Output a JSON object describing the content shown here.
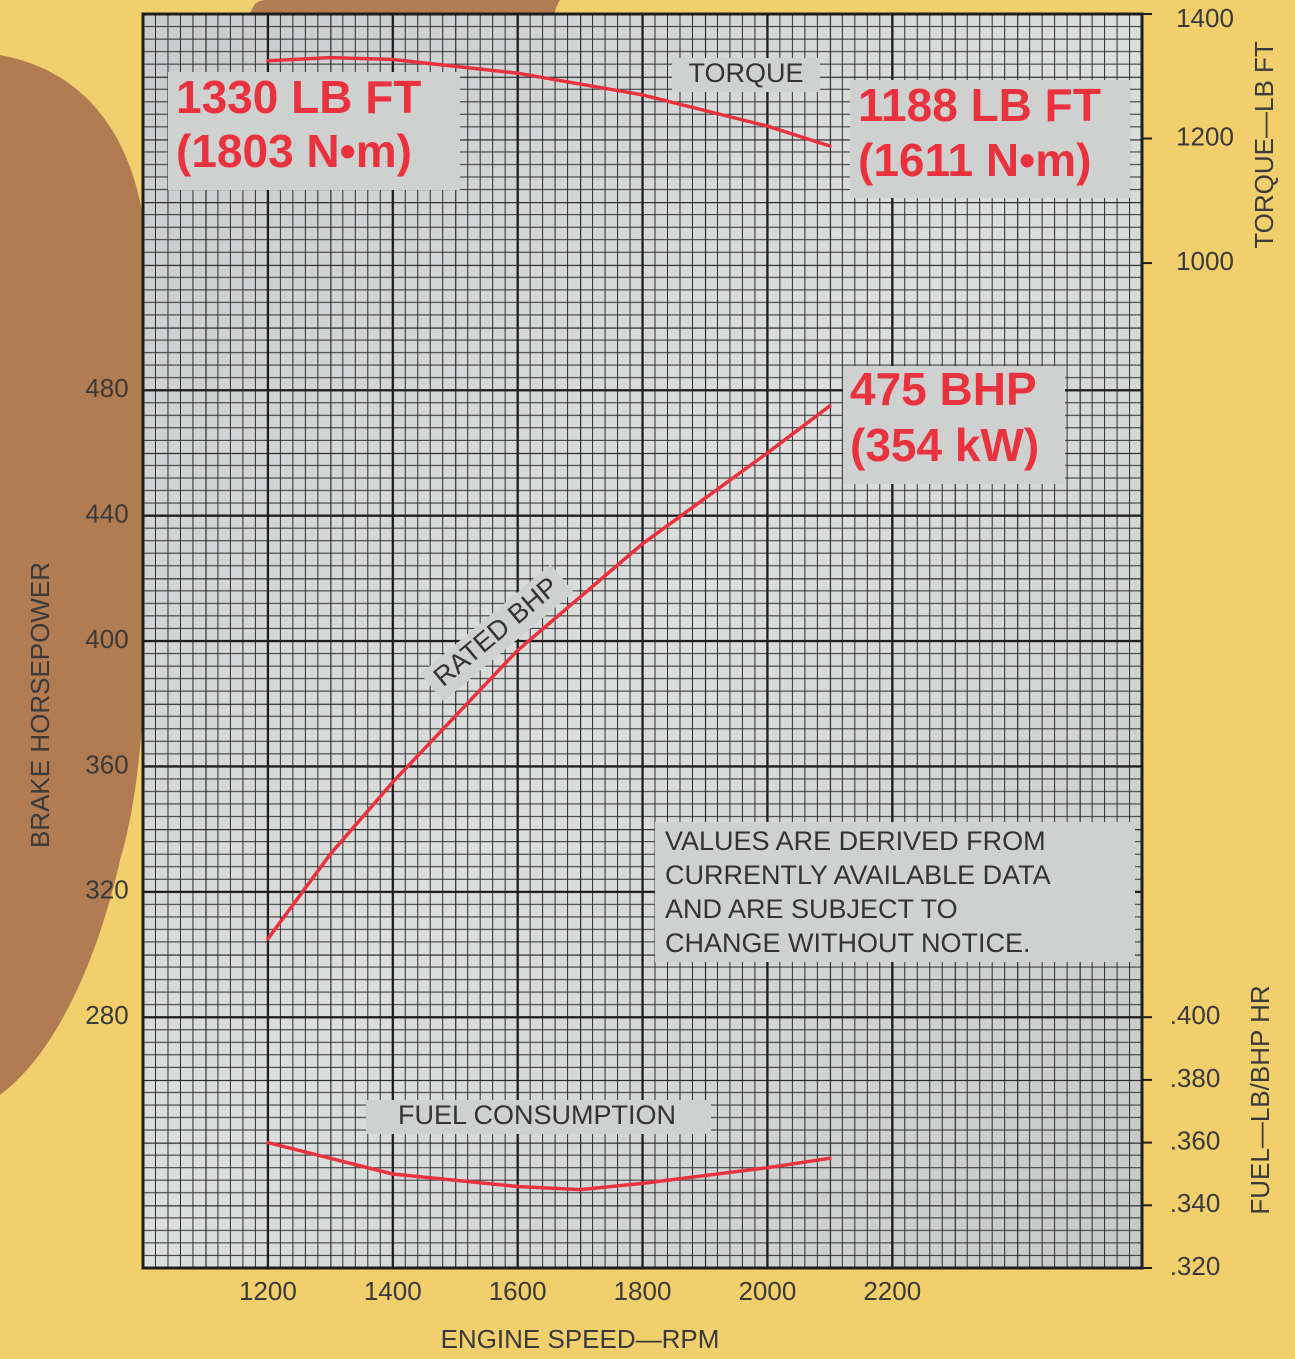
{
  "chart_data": {
    "type": "line",
    "xlabel": "ENGINE SPEED—RPM",
    "ylabel": "BRAKE HORSEPOWER",
    "y2label": "TORQUE—LB FT",
    "y3label": "FUEL—LB/BHP HR",
    "xlim": [
      1000,
      2600
    ],
    "xticks": [
      1200,
      1400,
      1600,
      1800,
      2000,
      2200
    ],
    "ylim": [
      200,
      600
    ],
    "yticks": [
      280,
      320,
      360,
      400,
      440,
      480
    ],
    "y2lim": [
      -614,
      1400
    ],
    "y2ticks": [
      1000,
      1200,
      1400
    ],
    "y3lim": [
      0.32,
      0.72
    ],
    "y3ticks": [
      {
        "value": 0.32,
        "label": ".320"
      },
      {
        "value": 0.34,
        "label": ".340"
      },
      {
        "value": 0.36,
        "label": ".360"
      },
      {
        "value": 0.38,
        "label": ".380"
      },
      {
        "value": 0.4,
        "label": ".400"
      }
    ],
    "grid": true,
    "series": [
      {
        "name": "TORQUE",
        "color": "#e8333f",
        "axis": "y2",
        "x": [
          1200,
          1300,
          1400,
          1600,
          1800,
          2000,
          2100
        ],
        "values": [
          1325,
          1330,
          1327,
          1305,
          1270,
          1220,
          1188
        ]
      },
      {
        "name": "RATED BHP",
        "color": "#e8333f",
        "axis": "y",
        "x": [
          1200,
          1300,
          1400,
          1600,
          1800,
          2000,
          2100
        ],
        "values": [
          305,
          332,
          355,
          397,
          431,
          460,
          475
        ]
      },
      {
        "name": "FUEL CONSUMPTION",
        "color": "#e8333f",
        "axis": "y3",
        "x": [
          1200,
          1400,
          1600,
          1700,
          1800,
          2000,
          2100
        ],
        "values": [
          0.36,
          0.35,
          0.346,
          0.345,
          0.347,
          0.352,
          0.355
        ]
      }
    ],
    "annotations": [
      "1330 LB FT",
      "(1803 N•m)",
      "1188 LB FT",
      "(1611 N•m)",
      "475 BHP",
      "(354 kW)"
    ],
    "note": [
      "VALUES ARE DERIVED FROM",
      "CURRENTLY AVAILABLE DATA",
      "AND ARE SUBJECT TO",
      "CHANGE WITHOUT NOTICE."
    ]
  }
}
